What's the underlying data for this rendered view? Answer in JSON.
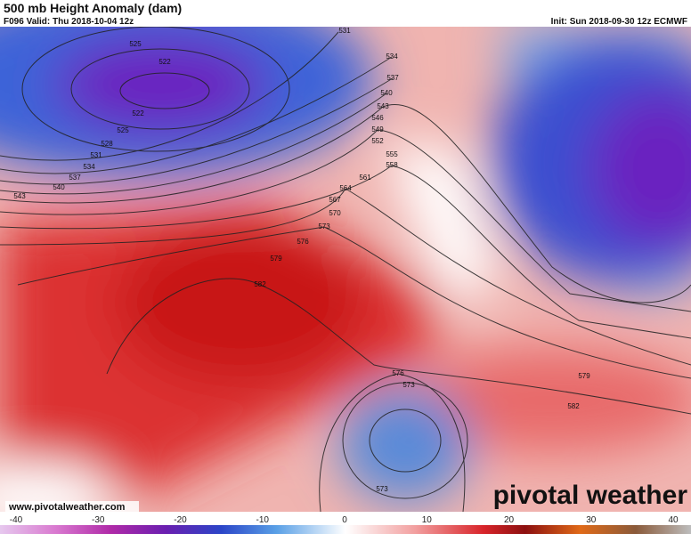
{
  "header": {
    "title": "500 mb Height Anomaly (dam)",
    "valid": "F096 Valid: Thu 2018-10-04 12z",
    "init": "Init: Sun 2018-09-30 12z ECMWF"
  },
  "contour_labels": [
    "525",
    "522",
    "522",
    "525",
    "528",
    "531",
    "534",
    "537",
    "540",
    "543",
    "531",
    "534",
    "537",
    "540",
    "543",
    "546",
    "549",
    "552",
    "555",
    "558",
    "561",
    "564",
    "567",
    "570",
    "573",
    "576",
    "579",
    "582",
    "576",
    "573",
    "579",
    "582",
    "573"
  ],
  "website": "www.pivotalweather.com",
  "logo": "pivotal weather",
  "colorbar": {
    "ticks": [
      "-40",
      "-30",
      "-20",
      "-10",
      "0",
      "10",
      "20",
      "30",
      "40"
    ]
  }
}
